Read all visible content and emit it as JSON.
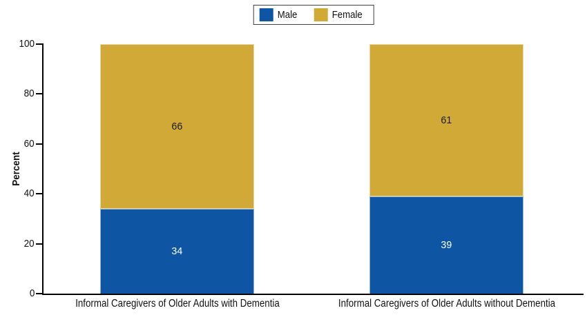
{
  "chart_data": {
    "type": "bar",
    "subtype": "stacked",
    "title": "",
    "ylabel": "Percent",
    "ylim": [
      0,
      100
    ],
    "yticks": [
      0,
      20,
      40,
      60,
      80,
      100
    ],
    "grid": false,
    "legend_position": "top-center",
    "categories": [
      "Informal Caregivers of Older Adults with Dementia",
      "Informal Caregivers of Older Adults without Dementia"
    ],
    "series": [
      {
        "name": "Male",
        "color": "#0e56a3",
        "label_color": "#ffffff",
        "values": [
          34,
          39
        ]
      },
      {
        "name": "Female",
        "color": "#d1a936",
        "label_color": "#1a1a1a",
        "values": [
          66,
          61
        ]
      }
    ]
  },
  "colors": {
    "axis": "#000000",
    "legend_border": "#3f3f3f",
    "background": "#ffffff"
  }
}
